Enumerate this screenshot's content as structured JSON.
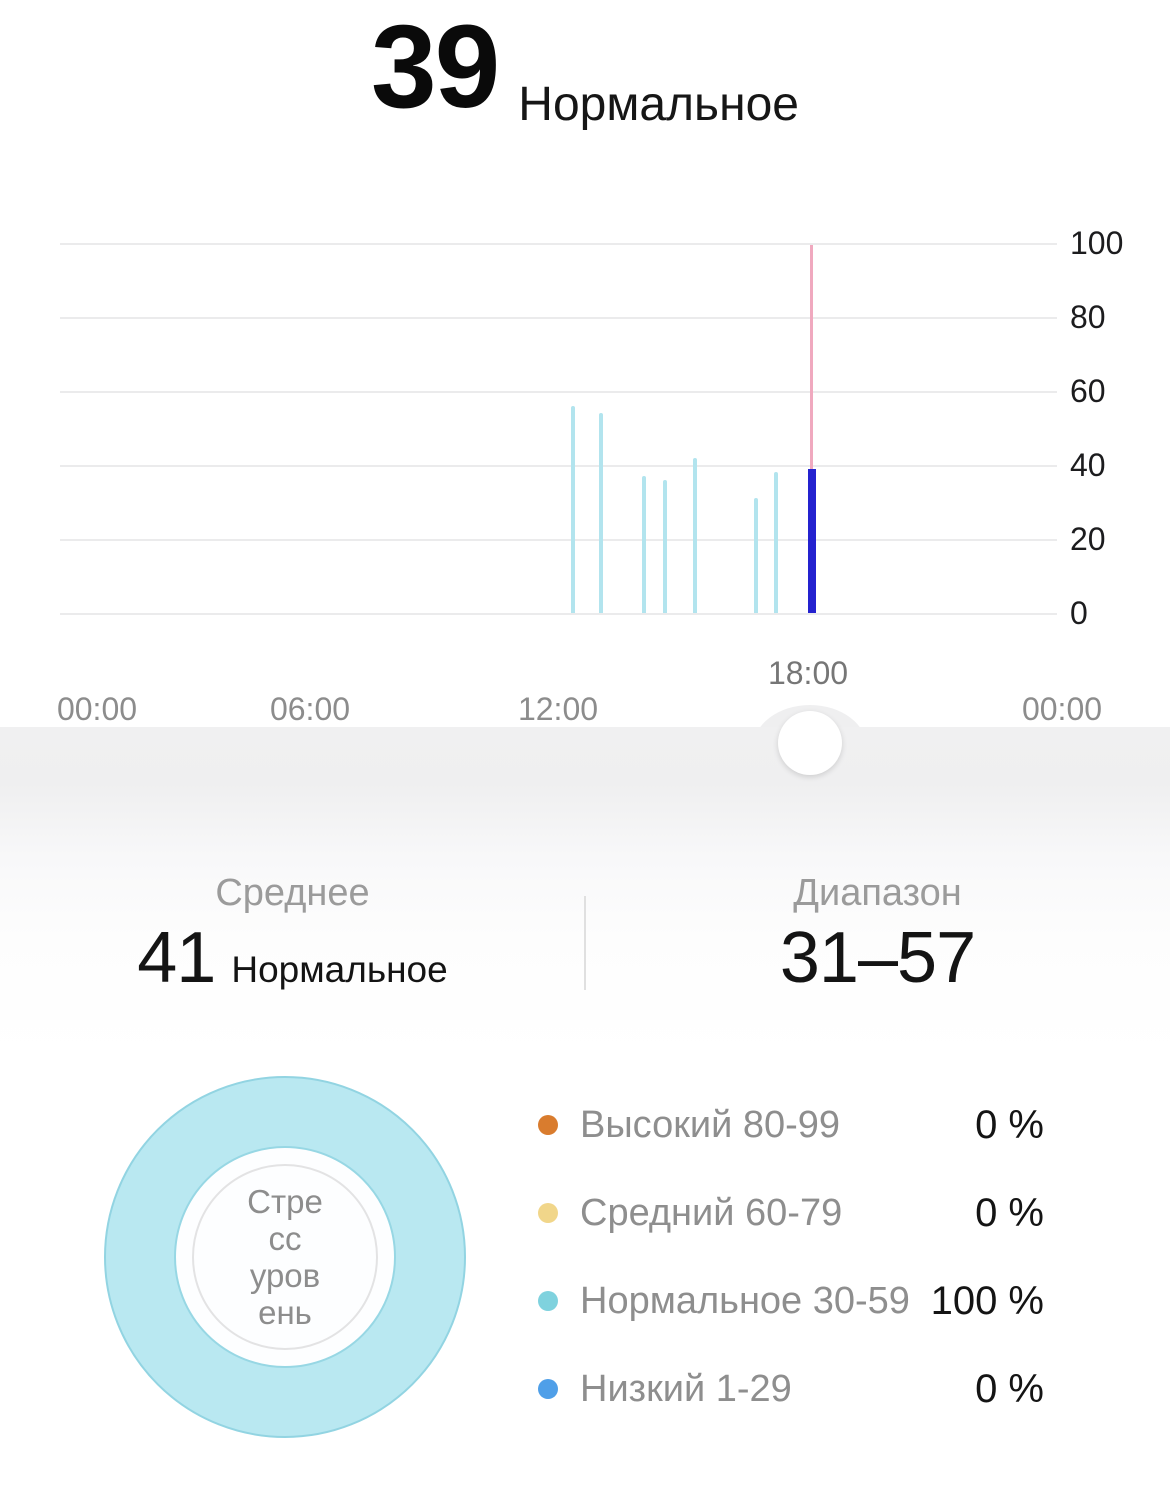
{
  "header": {
    "value": "39",
    "status": "Нормальное"
  },
  "chart_data": {
    "type": "bar",
    "ylim": [
      0,
      100
    ],
    "y_ticks": [
      0,
      20,
      40,
      60,
      80,
      100
    ],
    "y_tick_labels": [
      "100",
      "80",
      "60",
      "40",
      "20",
      "0"
    ],
    "x_tick_labels": [
      "00:00",
      "06:00",
      "12:00",
      "00:00"
    ],
    "selected_label": "18:00",
    "selected_value": 39,
    "selected_indicator_max": 100,
    "bars": [
      {
        "time": "12:22",
        "value": 56
      },
      {
        "time": "13:02",
        "value": 54
      },
      {
        "time": "14:04",
        "value": 37
      },
      {
        "time": "14:34",
        "value": 36
      },
      {
        "time": "15:17",
        "value": 42
      },
      {
        "time": "16:44",
        "value": 31
      },
      {
        "time": "17:14",
        "value": 38
      },
      {
        "time": "18:05",
        "value": 39,
        "selected": true
      }
    ],
    "colors": {
      "bar": "#b2e4ee",
      "selected_bar": "#2422cf",
      "indicator": "#f0a9bf"
    },
    "grid": true,
    "legend_position": "bottom"
  },
  "stats": {
    "average": {
      "label": "Среднее",
      "value": "41",
      "status": "Нормальное"
    },
    "range": {
      "label": "Диапазон",
      "value": "31–57"
    }
  },
  "donut": {
    "label": "Стресс уровень",
    "label_lines": [
      "Стре",
      "сс",
      "уров",
      "ень"
    ],
    "ring_color": "#b9e8f1",
    "segments": [
      {
        "name": "Нормальное 30-59",
        "percent": 100,
        "color": "#b9e8f1"
      }
    ]
  },
  "legend": [
    {
      "label": "Высокий 80-99",
      "value": "0 %",
      "color": "#d97c2e"
    },
    {
      "label": "Средний 60-79",
      "value": "0 %",
      "color": "#f1d68a"
    },
    {
      "label": "Нормальное 30-59",
      "value": "100 %",
      "color": "#7fd2de"
    },
    {
      "label": "Низкий 1-29",
      "value": "0 %",
      "color": "#4f9fe8"
    }
  ]
}
